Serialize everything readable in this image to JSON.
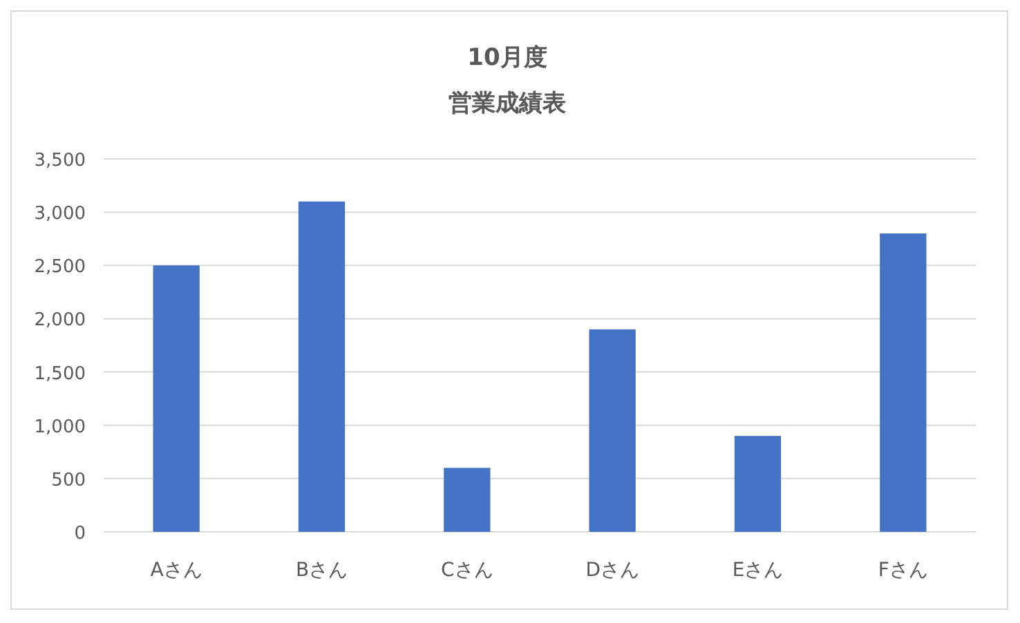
{
  "chart_data": {
    "type": "bar",
    "title": "10月度",
    "subtitle": "営業成績表",
    "categories": [
      "Aさん",
      "Bさん",
      "Cさん",
      "Dさん",
      "Eさん",
      "Fさん"
    ],
    "values": [
      2500,
      3100,
      600,
      1900,
      900,
      2800
    ],
    "color": "#4472c4",
    "ylim": [
      0,
      3500
    ],
    "yticks": [
      {
        "value": 0,
        "label": "0"
      },
      {
        "value": 500,
        "label": "500"
      },
      {
        "value": 1000,
        "label": "1,000"
      },
      {
        "value": 1500,
        "label": "1,500"
      },
      {
        "value": 2000,
        "label": "2,000"
      },
      {
        "value": 2500,
        "label": "2,500"
      },
      {
        "value": 3000,
        "label": "3,000"
      },
      {
        "value": 3500,
        "label": "3,500"
      }
    ],
    "grid": "y"
  }
}
